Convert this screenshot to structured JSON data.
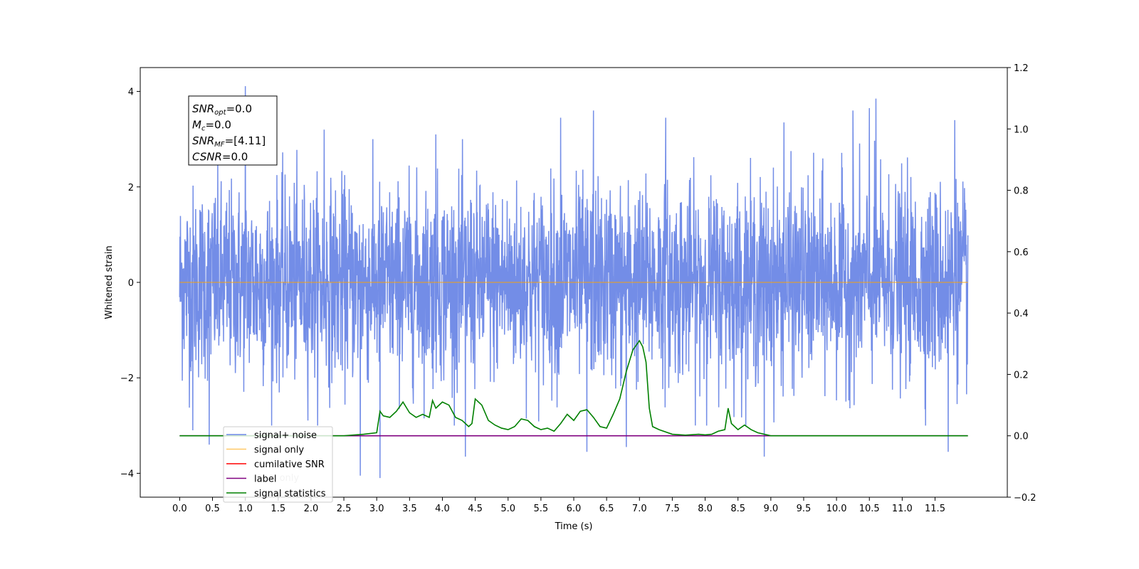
{
  "chart_data": {
    "type": "line",
    "title": "",
    "xlabel": "Time (s)",
    "ylabel": "Whitened strain",
    "xlim": [
      -0.6,
      12.6
    ],
    "ylim": [
      -4.5,
      4.5
    ],
    "y2lim": [
      -0.2,
      1.2
    ],
    "x_ticks": [
      0.0,
      0.5,
      1.0,
      1.5,
      2.0,
      2.5,
      3.0,
      3.5,
      4.0,
      4.5,
      5.0,
      5.5,
      6.0,
      6.5,
      7.0,
      7.5,
      8.0,
      8.5,
      9.0,
      9.5,
      10.0,
      10.5,
      11.0,
      11.5
    ],
    "x_tick_labels": [
      "0.0",
      "0.5",
      "1.0",
      "1.5",
      "2.0",
      "2.5",
      "3.0",
      "3.5",
      "4.0",
      "4.5",
      "5.0",
      "5.5",
      "6.0",
      "6.5",
      "7.0",
      "7.5",
      "8.0",
      "8.5",
      "9.0",
      "9.5",
      "10.0",
      "10.5",
      "11.0",
      "11.5"
    ],
    "y_ticks": [
      -4,
      -2,
      0,
      2,
      4
    ],
    "y_tick_labels": [
      "−4",
      "−2",
      "0",
      "2",
      "4"
    ],
    "y2_ticks": [
      -0.2,
      0.0,
      0.2,
      0.4,
      0.6,
      0.8,
      1.0,
      1.2
    ],
    "y2_tick_labels": [
      "−0.2",
      "0.0",
      "0.2",
      "0.4",
      "0.6",
      "0.8",
      "1.0",
      "1.2"
    ],
    "grid": false,
    "legend_position": "lower-left",
    "series": [
      {
        "name": "signal+ noise",
        "color": "#6b87e6",
        "axis": "left",
        "values": "band",
        "x_range": [
          0.0,
          12.0
        ],
        "spikes": [
          [
            1.0,
            4.11
          ],
          [
            2.2,
            3.2
          ],
          [
            3.9,
            3.1
          ],
          [
            5.8,
            3.45
          ],
          [
            6.3,
            3.6
          ],
          [
            7.4,
            3.45
          ],
          [
            9.2,
            3.35
          ],
          [
            10.25,
            3.6
          ],
          [
            10.5,
            3.65
          ],
          [
            10.6,
            3.85
          ],
          [
            11.8,
            3.4
          ],
          [
            0.45,
            -3.4
          ],
          [
            0.2,
            -3.1
          ],
          [
            2.75,
            -4.05
          ],
          [
            3.05,
            -4.1
          ],
          [
            4.35,
            -3.65
          ],
          [
            6.2,
            -3.55
          ],
          [
            6.8,
            -3.45
          ],
          [
            8.9,
            -3.65
          ],
          [
            11.7,
            -3.55
          ]
        ]
      },
      {
        "name": "signal only",
        "color": "#ffa500",
        "axis": "left",
        "x": [
          0.0,
          12.0
        ],
        "values": [
          0.0,
          0.0
        ]
      },
      {
        "name": "cumilative SNR",
        "color": "#ff0000",
        "axis": "right",
        "x": [],
        "values": []
      },
      {
        "name": "label",
        "color": "#800080",
        "axis": "right",
        "x": [
          0.0,
          12.0
        ],
        "values": [
          0.0,
          0.0
        ]
      },
      {
        "name": "signal statistics",
        "color": "#008000",
        "axis": "right",
        "x": [
          0.0,
          1.0,
          2.0,
          2.5,
          2.8,
          3.0,
          3.05,
          3.1,
          3.2,
          3.3,
          3.4,
          3.5,
          3.6,
          3.7,
          3.8,
          3.85,
          3.9,
          4.0,
          4.1,
          4.2,
          4.3,
          4.4,
          4.45,
          4.5,
          4.6,
          4.7,
          4.8,
          4.9,
          5.0,
          5.1,
          5.2,
          5.3,
          5.4,
          5.5,
          5.6,
          5.7,
          5.8,
          5.9,
          6.0,
          6.1,
          6.2,
          6.3,
          6.4,
          6.5,
          6.6,
          6.7,
          6.8,
          6.9,
          7.0,
          7.05,
          7.1,
          7.15,
          7.2,
          7.3,
          7.5,
          7.7,
          7.9,
          8.0,
          8.1,
          8.2,
          8.3,
          8.35,
          8.4,
          8.5,
          8.6,
          8.7,
          8.8,
          9.0,
          10.0,
          11.0,
          12.0
        ],
        "values": [
          0.0,
          0.0,
          0.0,
          0.0,
          0.005,
          0.01,
          0.08,
          0.065,
          0.06,
          0.08,
          0.11,
          0.075,
          0.06,
          0.07,
          0.06,
          0.115,
          0.09,
          0.11,
          0.1,
          0.06,
          0.05,
          0.03,
          0.04,
          0.12,
          0.1,
          0.05,
          0.035,
          0.025,
          0.02,
          0.03,
          0.055,
          0.05,
          0.03,
          0.02,
          0.025,
          0.015,
          0.04,
          0.07,
          0.05,
          0.08,
          0.085,
          0.06,
          0.03,
          0.025,
          0.07,
          0.12,
          0.21,
          0.28,
          0.31,
          0.29,
          0.24,
          0.09,
          0.03,
          0.02,
          0.005,
          0.002,
          0.005,
          0.003,
          0.005,
          0.015,
          0.02,
          0.09,
          0.04,
          0.02,
          0.035,
          0.02,
          0.01,
          0.0,
          0.0,
          0.0,
          0.0
        ]
      }
    ],
    "annotation": {
      "lines": [
        {
          "var": "SNR",
          "sub": "opt",
          "value": "=0.0"
        },
        {
          "var": "M",
          "sub": "c",
          "value": "=0.0"
        },
        {
          "var": "SNR",
          "sub": "MF",
          "value": "=[4.11]"
        },
        {
          "var": "CSNR",
          "sub": "",
          "value": "=0.0"
        }
      ]
    },
    "legend_overlap_text": [
      "cumilative SNR",
      "label only",
      "signal statistics"
    ]
  }
}
